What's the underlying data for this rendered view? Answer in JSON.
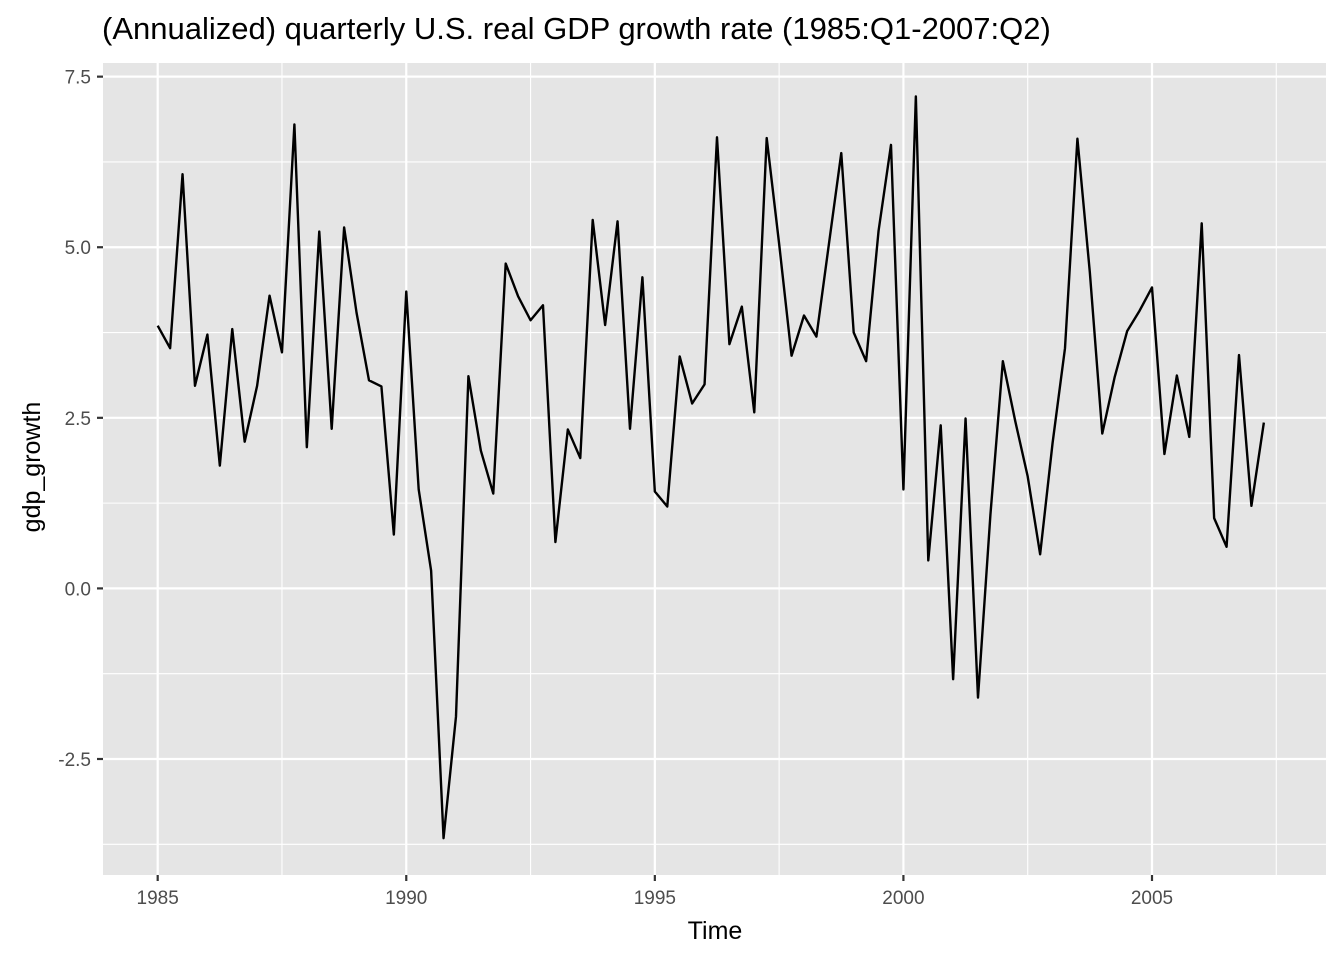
{
  "chart_data": {
    "type": "line",
    "title": "(Annualized) quarterly U.S. real GDP growth rate (1985:Q1-2007:Q2)",
    "xlabel": "Time",
    "ylabel": "gdp_growth",
    "xlim": [
      1983.9,
      2008.5
    ],
    "ylim": [
      -4.2,
      7.7
    ],
    "x_ticks": [
      1985,
      1990,
      1995,
      2000,
      2005
    ],
    "x_tick_labels": [
      "1985",
      "1990",
      "1995",
      "2000",
      "2005"
    ],
    "y_ticks": [
      -2.5,
      0,
      2.5,
      5,
      7.5
    ],
    "y_tick_labels": [
      "-2.5",
      "0.0",
      "2.5",
      "5.0",
      "7.5"
    ],
    "grid": true,
    "background": "#e5e5e5",
    "grid_color": "#ffffff",
    "line_color": "#000000",
    "series": [
      {
        "x_start": 1985.0,
        "x_step": 0.25,
        "values": [
          3.85,
          3.52,
          6.07,
          2.97,
          3.72,
          1.8,
          3.8,
          2.15,
          2.97,
          4.29,
          3.46,
          6.8,
          2.07,
          5.23,
          2.34,
          5.29,
          4.04,
          3.05,
          2.96,
          0.79,
          4.35,
          1.45,
          0.26,
          -3.66,
          -1.88,
          3.11,
          2.02,
          1.39,
          4.76,
          4.28,
          3.93,
          4.15,
          0.68,
          2.33,
          1.91,
          5.4,
          3.86,
          5.38,
          2.34,
          4.56,
          1.42,
          1.2,
          3.4,
          2.71,
          2.99,
          6.61,
          3.58,
          4.13,
          2.58,
          6.6,
          5.05,
          3.41,
          4.0,
          3.69,
          5.04,
          6.38,
          3.75,
          3.33,
          5.24,
          6.5,
          1.45,
          7.21,
          0.41,
          2.39,
          -1.33,
          2.49,
          -1.6,
          1.08,
          3.33,
          2.45,
          1.64,
          0.5,
          2.13,
          3.52,
          6.59,
          4.63,
          2.27,
          3.1,
          3.77,
          4.07,
          4.41,
          1.97,
          3.12,
          2.22,
          5.35,
          1.03,
          0.61,
          3.42,
          1.21,
          2.43
        ]
      }
    ]
  }
}
